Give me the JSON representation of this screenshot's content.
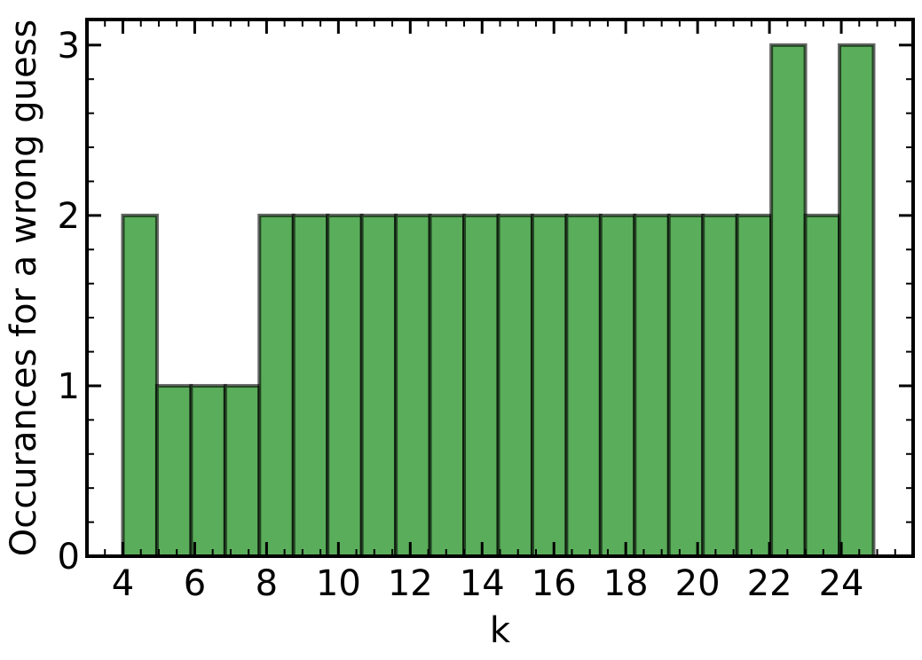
{
  "chart_data": {
    "type": "bar",
    "title": "",
    "xlabel": "k",
    "ylabel": "Occurances for a wrong guess",
    "xlim": [
      3.0,
      26.0
    ],
    "ylim": [
      0,
      3.15
    ],
    "xticks": [
      4,
      6,
      8,
      10,
      12,
      14,
      16,
      18,
      20,
      22,
      24
    ],
    "yticks": [
      0,
      1,
      2,
      3
    ],
    "bins": [
      {
        "x0": 4.0,
        "x1": 4.95,
        "value": 2
      },
      {
        "x0": 4.95,
        "x1": 5.9,
        "value": 1
      },
      {
        "x0": 5.9,
        "x1": 6.85,
        "value": 1
      },
      {
        "x0": 6.85,
        "x1": 7.8,
        "value": 1
      },
      {
        "x0": 7.8,
        "x1": 8.75,
        "value": 2
      },
      {
        "x0": 8.75,
        "x1": 9.7,
        "value": 2
      },
      {
        "x0": 9.7,
        "x1": 10.65,
        "value": 2
      },
      {
        "x0": 10.65,
        "x1": 11.6,
        "value": 2
      },
      {
        "x0": 11.6,
        "x1": 12.55,
        "value": 2
      },
      {
        "x0": 12.55,
        "x1": 13.5,
        "value": 2
      },
      {
        "x0": 13.5,
        "x1": 14.45,
        "value": 2
      },
      {
        "x0": 14.45,
        "x1": 15.4,
        "value": 2
      },
      {
        "x0": 15.4,
        "x1": 16.35,
        "value": 2
      },
      {
        "x0": 16.35,
        "x1": 17.3,
        "value": 2
      },
      {
        "x0": 17.3,
        "x1": 18.25,
        "value": 2
      },
      {
        "x0": 18.25,
        "x1": 19.2,
        "value": 2
      },
      {
        "x0": 19.2,
        "x1": 20.15,
        "value": 2
      },
      {
        "x0": 20.15,
        "x1": 21.1,
        "value": 2
      },
      {
        "x0": 21.1,
        "x1": 22.05,
        "value": 2
      },
      {
        "x0": 22.05,
        "x1": 23.0,
        "value": 3
      },
      {
        "x0": 23.0,
        "x1": 23.95,
        "value": 2
      },
      {
        "x0": 23.95,
        "x1": 24.9,
        "value": 3
      }
    ],
    "bar_color": "#5aad5a",
    "edge_color": "#000000",
    "grid": false,
    "legend": "none"
  }
}
